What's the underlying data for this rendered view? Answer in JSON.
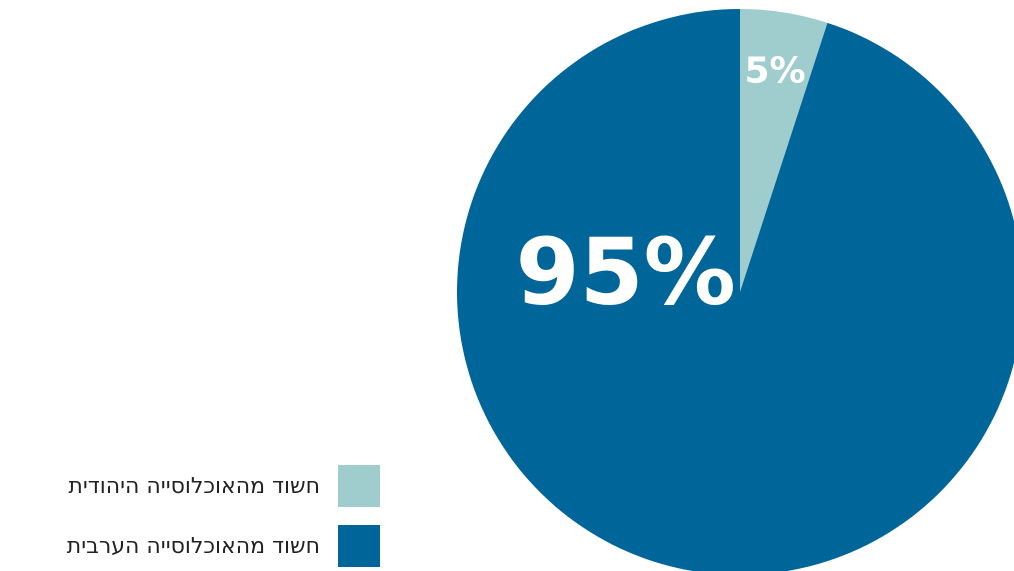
{
  "chart_data": {
    "type": "pie",
    "slices": [
      {
        "label": "חשוד מהאוכלוסייה היהודית",
        "value": 5,
        "display": "5%",
        "color": "#9fcccc"
      },
      {
        "label": "חשוד מהאוכלוסייה הערבית",
        "value": 95,
        "display": "95%",
        "color": "#006598"
      }
    ],
    "legend_position": "bottom-left"
  }
}
